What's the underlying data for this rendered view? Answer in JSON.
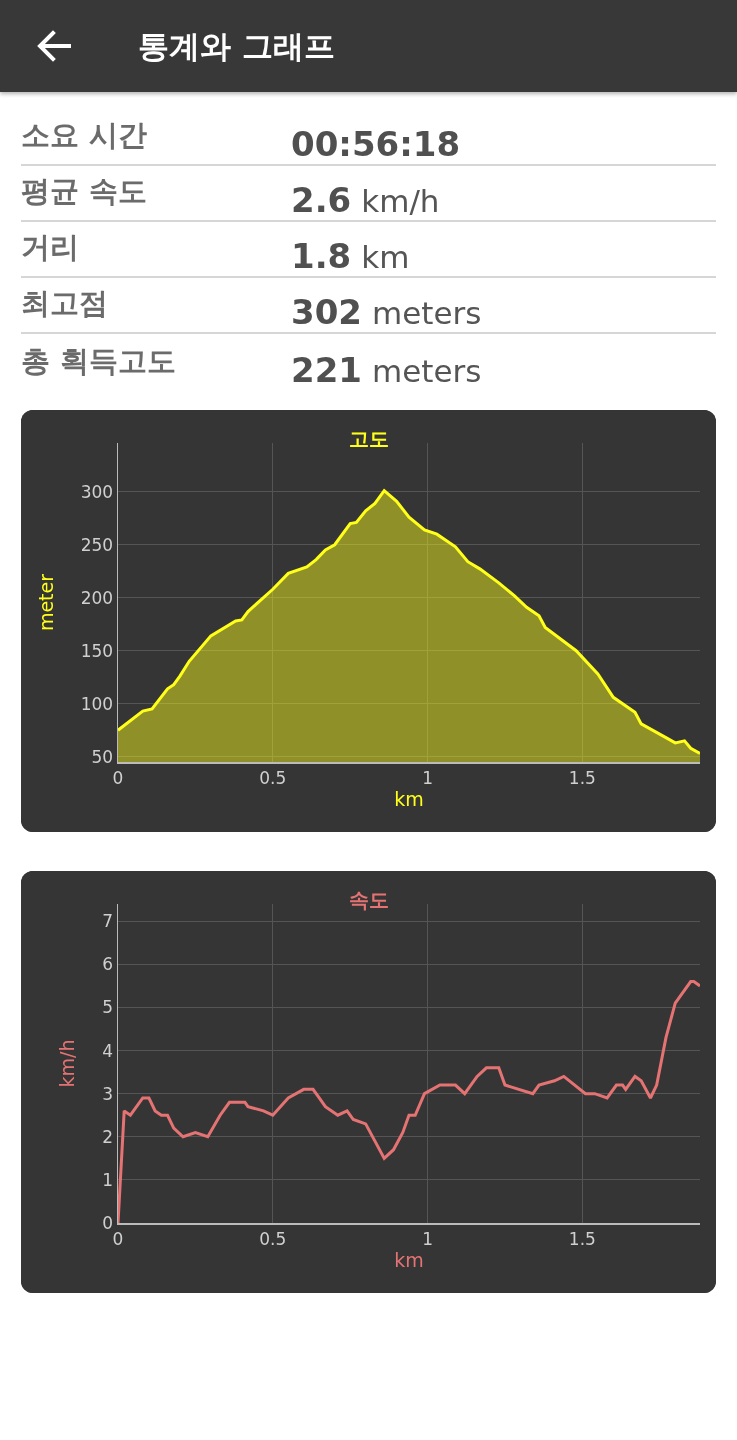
{
  "chart_data": [
    {
      "type": "other",
      "title": "통계와 그래프",
      "annotations": [
        "소요 시간",
        "00:56:18",
        "평균 속도",
        "2.6 km/h",
        "거리",
        "1.8 km",
        "최고점",
        "302 meters",
        "총 획득고도",
        "221 meters"
      ]
    },
    {
      "type": "area",
      "title": "고도",
      "xlabel": "km",
      "ylabel": "meter",
      "xlim": [
        0,
        1.88
      ],
      "ylim": [
        45,
        346
      ],
      "xticks": [
        0,
        0.5,
        1,
        1.5
      ],
      "yticks": [
        50,
        100,
        150,
        200,
        250,
        300
      ],
      "grid": true,
      "legend": false,
      "series": [
        {
          "color": "#ffff1a",
          "x": [
            0,
            0.08,
            0.11,
            0.16,
            0.18,
            0.2,
            0.23,
            0.3,
            0.38,
            0.4,
            0.42,
            0.5,
            0.55,
            0.61,
            0.64,
            0.67,
            0.7,
            0.75,
            0.77,
            0.8,
            0.83,
            0.86,
            0.9,
            0.94,
            0.99,
            1.03,
            1.09,
            1.13,
            1.17,
            1.23,
            1.28,
            1.32,
            1.36,
            1.38,
            1.48,
            1.55,
            1.6,
            1.67,
            1.69,
            1.77,
            1.8,
            1.83,
            1.85,
            1.88
          ],
          "values": [
            75,
            93,
            95,
            114,
            118,
            126,
            140,
            164,
            178,
            179,
            187,
            208,
            223,
            229,
            236,
            245,
            250,
            270,
            271,
            282,
            289,
            301,
            291,
            276,
            264,
            260,
            248,
            234,
            227,
            214,
            202,
            191,
            183,
            172,
            150,
            128,
            106,
            92,
            81,
            68,
            63,
            65,
            58,
            53
          ]
        }
      ]
    },
    {
      "type": "line",
      "title": "속도",
      "xlabel": "km",
      "ylabel": "km/h",
      "xlim": [
        0,
        1.88
      ],
      "ylim": [
        0,
        7.4
      ],
      "xticks": [
        0,
        0.5,
        1,
        1.5
      ],
      "yticks": [
        0,
        1,
        2,
        3,
        4,
        5,
        6,
        7
      ],
      "grid": true,
      "legend": false,
      "series": [
        {
          "color": "#e57373",
          "x": [
            0,
            0.02,
            0.04,
            0.08,
            0.1,
            0.12,
            0.14,
            0.16,
            0.18,
            0.21,
            0.25,
            0.29,
            0.33,
            0.36,
            0.41,
            0.42,
            0.47,
            0.5,
            0.55,
            0.6,
            0.63,
            0.65,
            0.67,
            0.71,
            0.74,
            0.76,
            0.8,
            0.83,
            0.86,
            0.89,
            0.92,
            0.94,
            0.96,
            0.99,
            1.04,
            1.09,
            1.12,
            1.16,
            1.19,
            1.23,
            1.25,
            1.34,
            1.36,
            1.41,
            1.44,
            1.51,
            1.54,
            1.58,
            1.61,
            1.63,
            1.64,
            1.67,
            1.69,
            1.72,
            1.74,
            1.77,
            1.8,
            1.85,
            1.86,
            1.88
          ],
          "values": [
            0,
            2.6,
            2.5,
            2.9,
            2.9,
            2.6,
            2.5,
            2.5,
            2.2,
            2.0,
            2.1,
            2.0,
            2.5,
            2.8,
            2.8,
            2.7,
            2.6,
            2.5,
            2.9,
            3.1,
            3.1,
            2.9,
            2.7,
            2.5,
            2.6,
            2.4,
            2.3,
            1.9,
            1.5,
            1.7,
            2.1,
            2.5,
            2.5,
            3.0,
            3.2,
            3.2,
            3.0,
            3.4,
            3.6,
            3.6,
            3.2,
            3.0,
            3.2,
            3.3,
            3.4,
            3.0,
            3.0,
            2.9,
            3.2,
            3.2,
            3.1,
            3.4,
            3.3,
            2.9,
            3.2,
            4.3,
            5.1,
            5.6,
            5.6,
            5.5
          ]
        }
      ]
    }
  ]
}
